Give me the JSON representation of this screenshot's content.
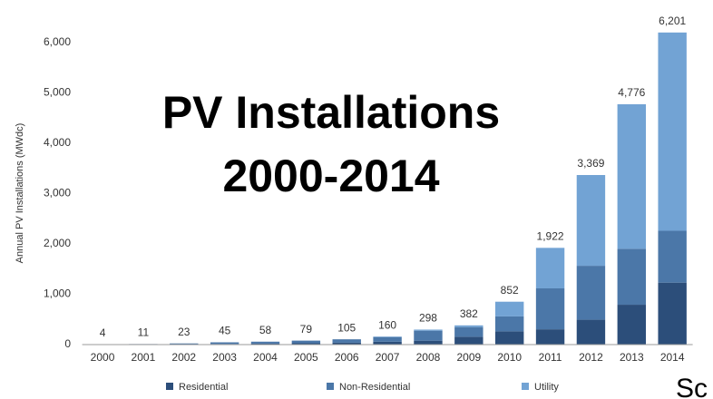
{
  "chart_data": {
    "type": "stacked_bar",
    "title": [
      "PV Installations",
      "2000-2014"
    ],
    "ylabel": "Annual PV Installations (MWdc)",
    "footnote": "Sc",
    "categories": [
      "2000",
      "2001",
      "2002",
      "2003",
      "2004",
      "2005",
      "2006",
      "2007",
      "2008",
      "2009",
      "2010",
      "2011",
      "2012",
      "2013",
      "2014"
    ],
    "series": [
      {
        "name": "Residential",
        "color": "#2c4e7a",
        "values": [
          4,
          5,
          9,
          11,
          19,
          27,
          38,
          57,
          78,
          156,
          264,
          304,
          494,
          792,
          1231
        ]
      },
      {
        "name": "Non-Residential",
        "color": "#4b77a8",
        "values": [
          0,
          6,
          14,
          34,
          39,
          52,
          67,
          93,
          198,
          192,
          296,
          813,
          1072,
          1112,
          1030
        ]
      },
      {
        "name": "Utility",
        "color": "#72a3d4",
        "values": [
          0,
          0,
          0,
          0,
          0,
          0,
          0,
          10,
          22,
          34,
          292,
          805,
          1803,
          2872,
          3940
        ]
      }
    ],
    "totals": [
      4,
      11,
      23,
      45,
      58,
      79,
      105,
      160,
      298,
      382,
      852,
      1922,
      3369,
      4776,
      6201
    ],
    "total_labels": [
      "4",
      "11",
      "23",
      "45",
      "58",
      "79",
      "105",
      "160",
      "298",
      "382",
      "852",
      "1,922",
      "3,369",
      "4,776",
      "6,201"
    ],
    "ylim": [
      0,
      6000
    ],
    "yticks": [
      0,
      {
        "value": 1000,
        "label": "1,000"
      },
      {
        "value": 2000,
        "label": "2,000"
      },
      {
        "value": 3000,
        "label": "3,000"
      },
      {
        "value": 4000,
        "label": "4,000"
      },
      {
        "value": 5000,
        "label": "5,000"
      },
      {
        "value": 6000,
        "label": "6,000"
      }
    ],
    "grid": false,
    "legend": "bottom"
  }
}
